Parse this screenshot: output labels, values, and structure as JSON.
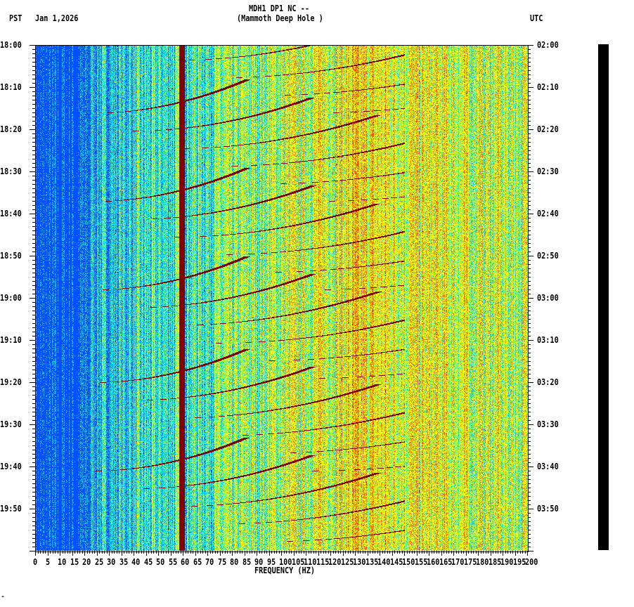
{
  "header": {
    "title": "MDH1 DP1 NC --",
    "subtitle": "(Mammoth Deep Hole )",
    "left_tz": "PST",
    "date": "Jan 1,2026",
    "right_tz": "UTC"
  },
  "footer_mark": "\"",
  "chart_data": {
    "type": "heatmap",
    "title": "MDH1 DP1 NC --",
    "subtitle": "(Mammoth Deep Hole )",
    "xlabel": "FREQUENCY (HZ)",
    "ylabel_left": "PST",
    "ylabel_right": "UTC",
    "xlim": [
      0,
      200
    ],
    "x_ticks": [
      "0",
      "5",
      "10",
      "15",
      "20",
      "25",
      "30",
      "35",
      "40",
      "45",
      "50",
      "55",
      "60",
      "65",
      "70",
      "75",
      "80",
      "85",
      "90",
      "95",
      "100",
      "105",
      "110",
      "115",
      "120",
      "125",
      "130",
      "135",
      "140",
      "145",
      "150",
      "155",
      "160",
      "165",
      "170",
      "175",
      "180",
      "185",
      "190",
      "195",
      "200"
    ],
    "y_ticks_left": [
      "18:00",
      "18:10",
      "18:20",
      "18:30",
      "18:40",
      "18:50",
      "19:00",
      "19:10",
      "19:20",
      "19:30",
      "19:40",
      "19:50"
    ],
    "y_ticks_right": [
      "02:00",
      "02:10",
      "02:20",
      "02:30",
      "02:40",
      "02:50",
      "03:00",
      "03:10",
      "03:20",
      "03:30",
      "03:40",
      "03:50"
    ],
    "time_range_minutes": 120,
    "colormap": [
      "#0050ff",
      "#00c8ff",
      "#60ff90",
      "#ffff00",
      "#ff8000",
      "#ff0000",
      "#800000"
    ],
    "features": {
      "constant_line_hz": 60,
      "chirp_cycle_minutes": 21,
      "chirp_cycle_starts_pst": [
        "18:16",
        "18:37",
        "18:58",
        "19:20",
        "19:41"
      ]
    }
  }
}
